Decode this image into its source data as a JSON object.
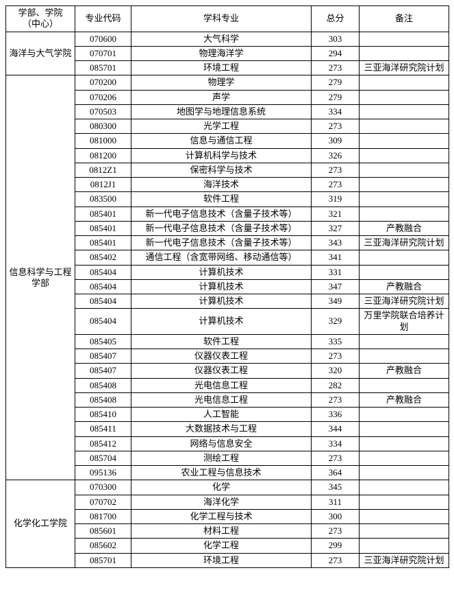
{
  "headers": {
    "dept": "学部、学院\n（中心）",
    "code": "专业代码",
    "major": "学科专业",
    "score": "总分",
    "remark": "备注"
  },
  "groups": [
    {
      "dept": "海洋与大气学院",
      "rows": [
        {
          "code": "070600",
          "major": "大气科学",
          "score": "303",
          "remark": ""
        },
        {
          "code": "070701",
          "major": "物理海洋学",
          "score": "294",
          "remark": ""
        },
        {
          "code": "085701",
          "major": "环境工程",
          "score": "273",
          "remark": "三亚海洋研究院计划"
        }
      ]
    },
    {
      "dept": "信息科学与工程学部",
      "rows": [
        {
          "code": "070200",
          "major": "物理学",
          "score": "279",
          "remark": ""
        },
        {
          "code": "070206",
          "major": "声学",
          "score": "279",
          "remark": ""
        },
        {
          "code": "070503",
          "major": "地图学与地理信息系统",
          "score": "334",
          "remark": ""
        },
        {
          "code": "080300",
          "major": "光学工程",
          "score": "273",
          "remark": ""
        },
        {
          "code": "081000",
          "major": "信息与通信工程",
          "score": "309",
          "remark": ""
        },
        {
          "code": "081200",
          "major": "计算机科学与技术",
          "score": "326",
          "remark": ""
        },
        {
          "code": "0812Z1",
          "major": "保密科学与技术",
          "score": "273",
          "remark": ""
        },
        {
          "code": "0812J1",
          "major": "海洋技术",
          "score": "273",
          "remark": ""
        },
        {
          "code": "083500",
          "major": "软件工程",
          "score": "319",
          "remark": ""
        },
        {
          "code": "085401",
          "major": "新一代电子信息技术（含量子技术等）",
          "score": "321",
          "remark": ""
        },
        {
          "code": "085401",
          "major": "新一代电子信息技术（含量子技术等）",
          "score": "327",
          "remark": "产教融合"
        },
        {
          "code": "085401",
          "major": "新一代电子信息技术（含量子技术等）",
          "score": "343",
          "remark": "三亚海洋研究院计划"
        },
        {
          "code": "085402",
          "major": "通信工程（含宽带网络、移动通信等）",
          "score": "341",
          "remark": ""
        },
        {
          "code": "085404",
          "major": "计算机技术",
          "score": "331",
          "remark": ""
        },
        {
          "code": "085404",
          "major": "计算机技术",
          "score": "347",
          "remark": "产教融合"
        },
        {
          "code": "085404",
          "major": "计算机技术",
          "score": "349",
          "remark": "三亚海洋研究院计划"
        },
        {
          "code": "085404",
          "major": "计算机技术",
          "score": "329",
          "remark": "万里学院联合培养计划"
        },
        {
          "code": "085405",
          "major": "软件工程",
          "score": "335",
          "remark": ""
        },
        {
          "code": "085407",
          "major": "仪器仪表工程",
          "score": "273",
          "remark": ""
        },
        {
          "code": "085407",
          "major": "仪器仪表工程",
          "score": "320",
          "remark": "产教融合"
        },
        {
          "code": "085408",
          "major": "光电信息工程",
          "score": "282",
          "remark": ""
        },
        {
          "code": "085408",
          "major": "光电信息工程",
          "score": "273",
          "remark": "产教融合"
        },
        {
          "code": "085410",
          "major": "人工智能",
          "score": "336",
          "remark": ""
        },
        {
          "code": "085411",
          "major": "大数据技术与工程",
          "score": "344",
          "remark": ""
        },
        {
          "code": "085412",
          "major": "网络与信息安全",
          "score": "334",
          "remark": ""
        },
        {
          "code": "085704",
          "major": "测绘工程",
          "score": "273",
          "remark": ""
        },
        {
          "code": "095136",
          "major": "农业工程与信息技术",
          "score": "364",
          "remark": ""
        }
      ]
    },
    {
      "dept": "化学化工学院",
      "rows": [
        {
          "code": "070300",
          "major": "化学",
          "score": "345",
          "remark": ""
        },
        {
          "code": "070702",
          "major": "海洋化学",
          "score": "311",
          "remark": ""
        },
        {
          "code": "081700",
          "major": "化学工程与技术",
          "score": "300",
          "remark": ""
        },
        {
          "code": "085601",
          "major": "材料工程",
          "score": "273",
          "remark": ""
        },
        {
          "code": "085602",
          "major": "化学工程",
          "score": "299",
          "remark": ""
        },
        {
          "code": "085701",
          "major": "环境工程",
          "score": "273",
          "remark": "三亚海洋研究院计划"
        }
      ]
    }
  ]
}
